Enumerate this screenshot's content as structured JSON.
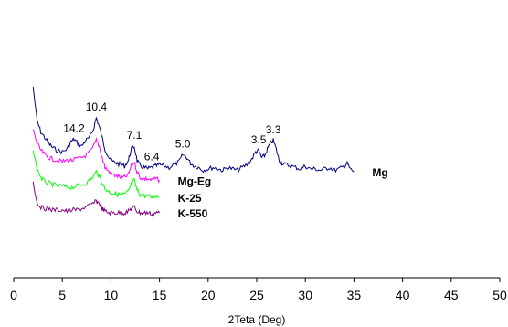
{
  "chart_data": {
    "type": "line",
    "xlabel": "2Teta (Deg)",
    "ylabel": "",
    "xlim": [
      0,
      50
    ],
    "xticks": [
      0,
      5,
      10,
      15,
      20,
      25,
      30,
      35,
      40,
      45,
      50
    ],
    "grid": false,
    "series": [
      {
        "name": "Mg",
        "color": "#000080",
        "x": [
          2.0,
          2.4,
          2.8,
          3.2,
          3.6,
          4.0,
          4.5,
          5.0,
          5.5,
          5.9,
          6.2,
          6.6,
          7.0,
          7.4,
          7.8,
          8.2,
          8.5,
          8.8,
          9.1,
          9.4,
          9.8,
          10.2,
          10.6,
          11.0,
          11.4,
          11.8,
          12.1,
          12.4,
          12.7,
          13.0,
          13.4,
          13.8,
          14.2,
          14.6,
          15.0,
          15.5,
          16.0,
          16.5,
          17.0,
          17.4,
          17.8,
          18.2,
          18.6,
          19.0,
          19.5,
          20.0,
          20.5,
          21.0,
          21.5,
          22.0,
          22.5,
          23.0,
          23.5,
          24.0,
          24.5,
          24.9,
          25.2,
          25.5,
          25.8,
          26.1,
          26.4,
          26.7,
          27.0,
          27.3,
          27.6,
          28.0,
          28.5,
          29.0,
          29.5,
          30.0,
          30.5,
          31.0,
          31.5,
          32.0,
          32.5,
          33.0,
          33.5,
          34.0,
          34.3,
          34.6,
          35.0
        ],
        "y": [
          100,
          76,
          68,
          64,
          60,
          57,
          55,
          54,
          56,
          61,
          63,
          60,
          58,
          62,
          64,
          70,
          78,
          72,
          64,
          56,
          50,
          47,
          46,
          45,
          44,
          48,
          56,
          58,
          48,
          44,
          43,
          42,
          43,
          44,
          45,
          44,
          43,
          45,
          47,
          52,
          50,
          46,
          44,
          43,
          41,
          42,
          43,
          42,
          41,
          43,
          42,
          41,
          43,
          45,
          49,
          54,
          55,
          50,
          51,
          56,
          60,
          62,
          56,
          48,
          46,
          45,
          44,
          43,
          42,
          44,
          42,
          42,
          41,
          42,
          43,
          41,
          42,
          44,
          46,
          42,
          40
        ],
        "peak_labels": [
          {
            "x": 6.2,
            "text": "14.2"
          },
          {
            "x": 8.5,
            "text": "10.4"
          },
          {
            "x": 12.4,
            "text": "7.1"
          },
          {
            "x": 14.2,
            "text": "6.4"
          },
          {
            "x": 17.4,
            "text": "5.0"
          },
          {
            "x": 25.2,
            "text": "3.5"
          },
          {
            "x": 26.7,
            "text": "3.3"
          }
        ]
      },
      {
        "name": "Mg-Eg",
        "color": "#ff00ff",
        "x": [
          2.0,
          2.4,
          2.8,
          3.2,
          3.6,
          4.0,
          4.5,
          5.0,
          5.5,
          6.0,
          6.5,
          7.0,
          7.5,
          8.0,
          8.5,
          8.8,
          9.1,
          9.4,
          9.8,
          10.2,
          10.6,
          11.0,
          11.4,
          11.8,
          12.1,
          12.4,
          12.7,
          13.0,
          13.4,
          13.8,
          14.2,
          14.6,
          15.0
        ],
        "y": [
          70,
          60,
          55,
          52,
          50,
          49,
          48,
          47,
          48,
          48,
          49,
          50,
          52,
          55,
          62,
          58,
          50,
          43,
          40,
          38,
          37,
          36,
          36,
          38,
          44,
          47,
          40,
          36,
          35,
          35,
          34,
          35,
          34
        ]
      },
      {
        "name": "K-25",
        "color": "#00ff00",
        "x": [
          2.0,
          2.4,
          2.8,
          3.2,
          3.6,
          4.0,
          4.5,
          5.0,
          5.5,
          6.0,
          6.5,
          7.0,
          7.5,
          8.0,
          8.5,
          8.8,
          9.1,
          9.4,
          9.8,
          10.2,
          10.6,
          11.0,
          11.4,
          11.8,
          12.1,
          12.4,
          12.7,
          13.0,
          13.4,
          13.8,
          14.2,
          14.6,
          15.0
        ],
        "y": [
          55,
          42,
          36,
          33,
          32,
          31,
          30,
          30,
          29,
          29,
          30,
          31,
          32,
          35,
          40,
          37,
          32,
          28,
          26,
          25,
          24,
          24,
          24,
          26,
          31,
          34,
          27,
          24,
          23,
          23,
          22,
          23,
          22
        ]
      },
      {
        "name": "K-550",
        "color": "#800080",
        "x": [
          2.0,
          2.4,
          2.8,
          3.2,
          3.6,
          4.0,
          4.5,
          5.0,
          5.5,
          6.0,
          6.5,
          7.0,
          7.5,
          8.0,
          8.5,
          8.8,
          9.1,
          9.4,
          9.8,
          10.2,
          10.6,
          11.0,
          11.4,
          11.8,
          12.1,
          12.4,
          12.7,
          13.0,
          13.4,
          13.8,
          14.2,
          14.6,
          15.0
        ],
        "y": [
          33,
          18,
          15,
          14,
          14,
          13,
          13,
          13,
          12,
          13,
          13,
          14,
          15,
          17,
          19,
          18,
          14,
          12,
          11,
          11,
          11,
          11,
          11,
          12,
          14,
          15,
          12,
          11,
          11,
          11,
          10,
          11,
          11
        ]
      }
    ]
  }
}
